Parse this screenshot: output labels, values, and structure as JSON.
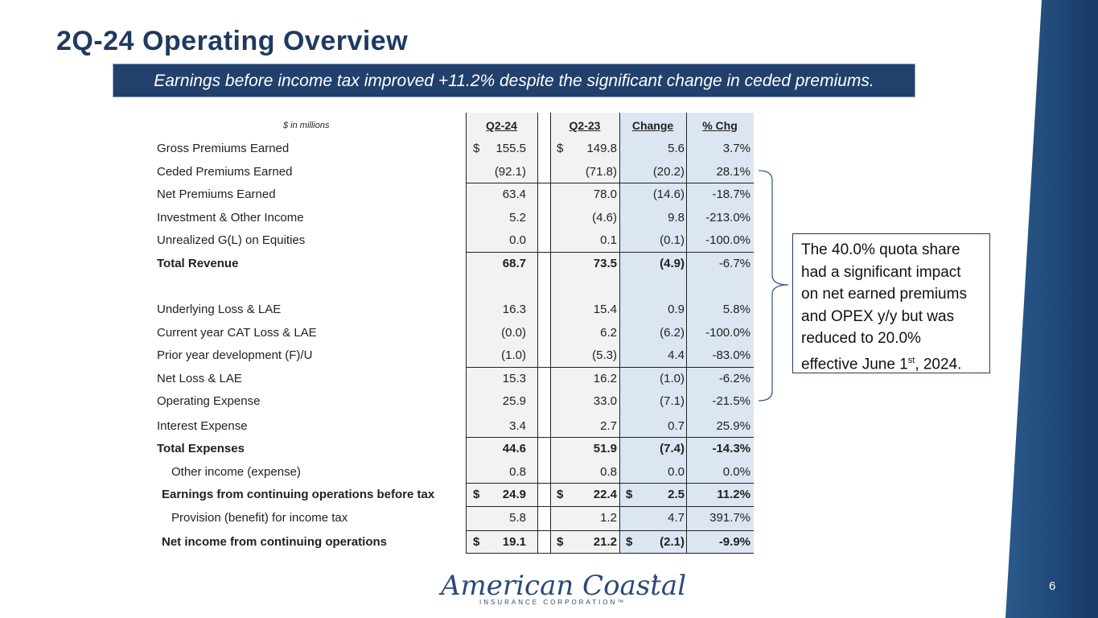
{
  "slide": {
    "title": "2Q-24 Operating Overview",
    "subtitle": "Earnings before income tax improved +11.2% despite the significant change in ceded premiums.",
    "page_number": "6"
  },
  "table": {
    "units_label": "$ in millions",
    "headers": [
      "Q2-24",
      "Q2-23",
      "Change",
      "% Chg"
    ],
    "rows": [
      {
        "label": "Gross Premiums Earned",
        "q224": "155.5",
        "q223": "149.8",
        "change": "5.6",
        "pct": "3.7%",
        "d_a": "$",
        "d_b": "$",
        "d_c": ""
      },
      {
        "label": "Ceded Premiums Earned",
        "q224": "(92.1)",
        "q223": "(71.8)",
        "change": "(20.2)",
        "pct": "28.1%",
        "d_a": "",
        "d_b": "",
        "d_c": ""
      },
      {
        "label": "Net Premiums Earned",
        "q224": "63.4",
        "q223": "78.0",
        "change": "(14.6)",
        "pct": "-18.7%",
        "d_a": "",
        "d_b": "",
        "d_c": ""
      },
      {
        "label": "Investment & Other Income",
        "q224": "5.2",
        "q223": "(4.6)",
        "change": "9.8",
        "pct": "-213.0%",
        "d_a": "",
        "d_b": "",
        "d_c": ""
      },
      {
        "label": "Unrealized G(L) on Equities",
        "q224": "0.0",
        "q223": "0.1",
        "change": "(0.1)",
        "pct": "-100.0%",
        "d_a": "",
        "d_b": "",
        "d_c": ""
      },
      {
        "label": "Total Revenue",
        "q224": "68.7",
        "q223": "73.5",
        "change": "(4.9)",
        "pct": "-6.7%",
        "d_a": "",
        "d_b": "",
        "d_c": ""
      },
      {
        "label": "Underlying Loss & LAE",
        "q224": "16.3",
        "q223": "15.4",
        "change": "0.9",
        "pct": "5.8%",
        "d_a": "",
        "d_b": "",
        "d_c": ""
      },
      {
        "label": "Current year CAT Loss & LAE",
        "q224": "(0.0)",
        "q223": "6.2",
        "change": "(6.2)",
        "pct": "-100.0%",
        "d_a": "",
        "d_b": "",
        "d_c": ""
      },
      {
        "label": "Prior year development (F)/U",
        "q224": "(1.0)",
        "q223": "(5.3)",
        "change": "4.4",
        "pct": "-83.0%",
        "d_a": "",
        "d_b": "",
        "d_c": ""
      },
      {
        "label": "Net Loss & LAE",
        "q224": "15.3",
        "q223": "16.2",
        "change": "(1.0)",
        "pct": "-6.2%",
        "d_a": "",
        "d_b": "",
        "d_c": ""
      },
      {
        "label": "Operating Expense",
        "q224": "25.9",
        "q223": "33.0",
        "change": "(7.1)",
        "pct": "-21.5%",
        "d_a": "",
        "d_b": "",
        "d_c": ""
      },
      {
        "label": "Interest Expense",
        "q224": "3.4",
        "q223": "2.7",
        "change": "0.7",
        "pct": "25.9%",
        "d_a": "",
        "d_b": "",
        "d_c": ""
      },
      {
        "label": "Total Expenses",
        "q224": "44.6",
        "q223": "51.9",
        "change": "(7.4)",
        "pct": "-14.3%",
        "d_a": "",
        "d_b": "",
        "d_c": ""
      },
      {
        "label": "Other income (expense)",
        "q224": "0.8",
        "q223": "0.8",
        "change": "0.0",
        "pct": "0.0%",
        "d_a": "",
        "d_b": "",
        "d_c": ""
      },
      {
        "label": "Earnings from continuing operations before tax",
        "q224": "24.9",
        "q223": "22.4",
        "change": "2.5",
        "pct": "11.2%",
        "d_a": "$",
        "d_b": "$",
        "d_c": "$"
      },
      {
        "label": "Provision (benefit) for income tax",
        "q224": "5.8",
        "q223": "1.2",
        "change": "4.7",
        "pct": "391.7%",
        "d_a": "",
        "d_b": "",
        "d_c": ""
      },
      {
        "label": "Net income from continuing operations",
        "q224": "19.1",
        "q223": "21.2",
        "change": "(2.1)",
        "pct": "-9.9%",
        "d_a": "$",
        "d_b": "$",
        "d_c": "$"
      }
    ]
  },
  "callout": {
    "text_before": "The 40.0% quota share had a significant impact on net earned premiums and OPEX y/y but was reduced to 20.0% effective June 1",
    "superscript": "st",
    "text_after": ", 2024."
  },
  "logo": {
    "name": "American Coastal",
    "tagline": "INSURANCE CORPORATION™"
  },
  "colors": {
    "navy": "#1f3a60",
    "subtitle_bg": "#21406c",
    "change_col_bg": "#dce6f2"
  }
}
